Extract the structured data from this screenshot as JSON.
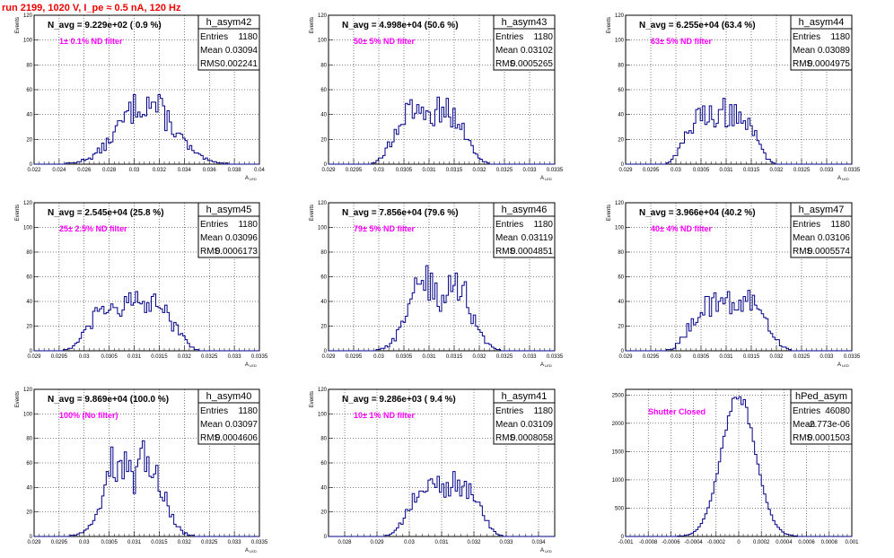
{
  "header": {
    "run_title": "run 2199,  1020 V, I_pe ≈ 0.5 nA, 120 Hz"
  },
  "chart_data": [
    {
      "type": "histogram",
      "name": "h_asym42",
      "title": "N_avg = 9.229e+02 ( 0.9 %)",
      "annotation": "1± 0.1% ND filter",
      "xlabel": "A_LED",
      "ylabel": "Events",
      "xlim": [
        0.022,
        0.04
      ],
      "ylim": [
        0,
        120
      ],
      "xticks": [
        "0.022",
        "0.024",
        "0.026",
        "0.028",
        "0.03",
        "0.032",
        "0.034",
        "0.036",
        "0.038",
        "0.04"
      ],
      "yticks": [
        "0",
        "20",
        "40",
        "60",
        "80",
        "100",
        "120"
      ],
      "stats": [
        [
          "Entries",
          "1180"
        ],
        [
          "Mean",
          "0.03094"
        ],
        [
          "RMS",
          "0.002241"
        ]
      ],
      "mean": 0.03094,
      "rms": 0.002241,
      "peak": 50,
      "shape": "broad",
      "grid": true
    },
    {
      "type": "histogram",
      "name": "h_asym43",
      "title": "N_avg = 4.998e+04 (50.6 %)",
      "annotation": "50± 5% ND filter",
      "xlabel": "A_LED",
      "ylabel": "Events",
      "xlim": [
        0.029,
        0.0335
      ],
      "ylim": [
        0,
        120
      ],
      "xticks": [
        "0.029",
        "0.0295",
        "0.03",
        "0.0305",
        "0.031",
        "0.0315",
        "0.032",
        "0.0325",
        "0.033",
        "0.0335"
      ],
      "yticks": [
        "0",
        "20",
        "40",
        "60",
        "80",
        "100",
        "120"
      ],
      "stats": [
        [
          "Entries",
          "1180"
        ],
        [
          "Mean",
          "0.03102"
        ],
        [
          "RMS",
          "0.0005265"
        ]
      ],
      "mean": 0.03102,
      "rms": 0.0005265,
      "peak": 43,
      "shape": "flat",
      "grid": true
    },
    {
      "type": "histogram",
      "name": "h_asym44",
      "title": "N_avg = 6.255e+04 (63.4 %)",
      "annotation": "63± 5% ND filter",
      "xlabel": "A_LED",
      "ylabel": "Events",
      "xlim": [
        0.029,
        0.0335
      ],
      "ylim": [
        0,
        120
      ],
      "xticks": [
        "0.029",
        "0.0295",
        "0.03",
        "0.0305",
        "0.031",
        "0.0315",
        "0.032",
        "0.0325",
        "0.033",
        "0.0335"
      ],
      "yticks": [
        "0",
        "20",
        "40",
        "60",
        "80",
        "100",
        "120"
      ],
      "stats": [
        [
          "Entries",
          "1180"
        ],
        [
          "Mean",
          "0.03089"
        ],
        [
          "RMS",
          "0.0004975"
        ]
      ],
      "mean": 0.03089,
      "rms": 0.0004975,
      "peak": 42,
      "shape": "flat",
      "grid": true
    },
    {
      "type": "histogram",
      "name": "h_asym45",
      "title": "N_avg = 2.545e+04 (25.8 %)",
      "annotation": "25± 2.5% ND filter",
      "xlabel": "A_LED",
      "ylabel": "Events",
      "xlim": [
        0.029,
        0.0335
      ],
      "ylim": [
        0,
        120
      ],
      "xticks": [
        "0.029",
        "0.0295",
        "0.03",
        "0.0305",
        "0.031",
        "0.0315",
        "0.032",
        "0.0325",
        "0.033",
        "0.0335"
      ],
      "yticks": [
        "0",
        "20",
        "40",
        "60",
        "80",
        "100",
        "120"
      ],
      "stats": [
        [
          "Entries",
          "1180"
        ],
        [
          "Mean",
          "0.03096"
        ],
        [
          "RMS",
          "0.0006173"
        ]
      ],
      "mean": 0.03096,
      "rms": 0.0006173,
      "peak": 38,
      "shape": "flat",
      "grid": true
    },
    {
      "type": "histogram",
      "name": "h_asym46",
      "title": "N_avg = 7.856e+04 (79.6 %)",
      "annotation": "79± 5% ND filter",
      "xlabel": "A_LED",
      "ylabel": "Events",
      "xlim": [
        0.029,
        0.0335
      ],
      "ylim": [
        0,
        120
      ],
      "xticks": [
        "0.029",
        "0.0295",
        "0.03",
        "0.0305",
        "0.031",
        "0.0315",
        "0.032",
        "0.0325",
        "0.033",
        "0.0335"
      ],
      "yticks": [
        "0",
        "20",
        "40",
        "60",
        "80",
        "100",
        "120"
      ],
      "stats": [
        [
          "Entries",
          "1180"
        ],
        [
          "Mean",
          "0.03119"
        ],
        [
          "RMS",
          "0.0004851"
        ]
      ],
      "mean": 0.03119,
      "rms": 0.0004851,
      "peak": 47,
      "shape": "double",
      "grid": true
    },
    {
      "type": "histogram",
      "name": "h_asym47",
      "title": "N_avg = 3.966e+04 (40.2 %)",
      "annotation": "40± 4% ND filter",
      "xlabel": "A_LED",
      "ylabel": "Events",
      "xlim": [
        0.029,
        0.0335
      ],
      "ylim": [
        0,
        120
      ],
      "xticks": [
        "0.029",
        "0.0295",
        "0.03",
        "0.0305",
        "0.031",
        "0.0315",
        "0.032",
        "0.0325",
        "0.033",
        "0.0335"
      ],
      "yticks": [
        "0",
        "20",
        "40",
        "60",
        "80",
        "100",
        "120"
      ],
      "stats": [
        [
          "Entries",
          "1180"
        ],
        [
          "Mean",
          "0.03106"
        ],
        [
          "RMS",
          "0.0005574"
        ]
      ],
      "mean": 0.03106,
      "rms": 0.0005574,
      "peak": 40,
      "shape": "flat",
      "grid": true
    },
    {
      "type": "histogram",
      "name": "h_asym40",
      "title": "N_avg = 9.869e+04 (100.0 %)",
      "annotation": "100% (No filter)",
      "xlabel": "A_LED",
      "ylabel": "Events",
      "xlim": [
        0.029,
        0.0335
      ],
      "ylim": [
        0,
        120
      ],
      "xticks": [
        "0.029",
        "0.0295",
        "0.03",
        "0.0305",
        "0.031",
        "0.0315",
        "0.032",
        "0.0325",
        "0.033",
        "0.0335"
      ],
      "yticks": [
        "0",
        "20",
        "40",
        "60",
        "80",
        "100",
        "120"
      ],
      "stats": [
        [
          "Entries",
          "1180"
        ],
        [
          "Mean",
          "0.03097"
        ],
        [
          "RMS",
          "0.0004606"
        ]
      ],
      "mean": 0.03097,
      "rms": 0.0004606,
      "peak": 53,
      "shape": "double",
      "grid": true
    },
    {
      "type": "histogram",
      "name": "h_asym41",
      "title": "N_avg = 9.286e+03 ( 9.4 %)",
      "annotation": "10± 1% ND filter",
      "xlabel": "A_LED",
      "ylabel": "Events",
      "xlim": [
        0.0275,
        0.0345
      ],
      "ylim": [
        0,
        120
      ],
      "xticks": [
        "0.028",
        "0.029",
        "0.03",
        "0.031",
        "0.032",
        "0.033",
        "0.034"
      ],
      "yticks": [
        "0",
        "20",
        "40",
        "60",
        "80",
        "100",
        "120"
      ],
      "stats": [
        [
          "Entries",
          "1180"
        ],
        [
          "Mean",
          "0.03109"
        ],
        [
          "RMS",
          "0.0008058"
        ]
      ],
      "mean": 0.03109,
      "rms": 0.0008058,
      "peak": 42,
      "shape": "flat",
      "grid": true
    },
    {
      "type": "histogram",
      "name": "hPed_asym",
      "title": "",
      "annotation": "Shutter Closed",
      "xlabel": "",
      "ylabel": "",
      "xlim": [
        -0.001,
        0.001
      ],
      "ylim": [
        0,
        2600
      ],
      "xticks": [
        "-0.001",
        "-0.0008",
        "-0.0006",
        "-0.0004",
        "-0.0002",
        "0",
        "0.0002",
        "0.0004",
        "0.0006",
        "0.0008",
        "0.001"
      ],
      "yticks": [
        "0",
        "500",
        "1000",
        "1500",
        "2000",
        "2500"
      ],
      "stats": [
        [
          "Entries",
          "46080"
        ],
        [
          "Mean",
          "-2.773e-06"
        ],
        [
          "RMS",
          "0.0001503"
        ]
      ],
      "mean": -2.773e-06,
      "rms": 0.0001503,
      "peak": 2480,
      "shape": "gauss",
      "grid": true
    }
  ]
}
